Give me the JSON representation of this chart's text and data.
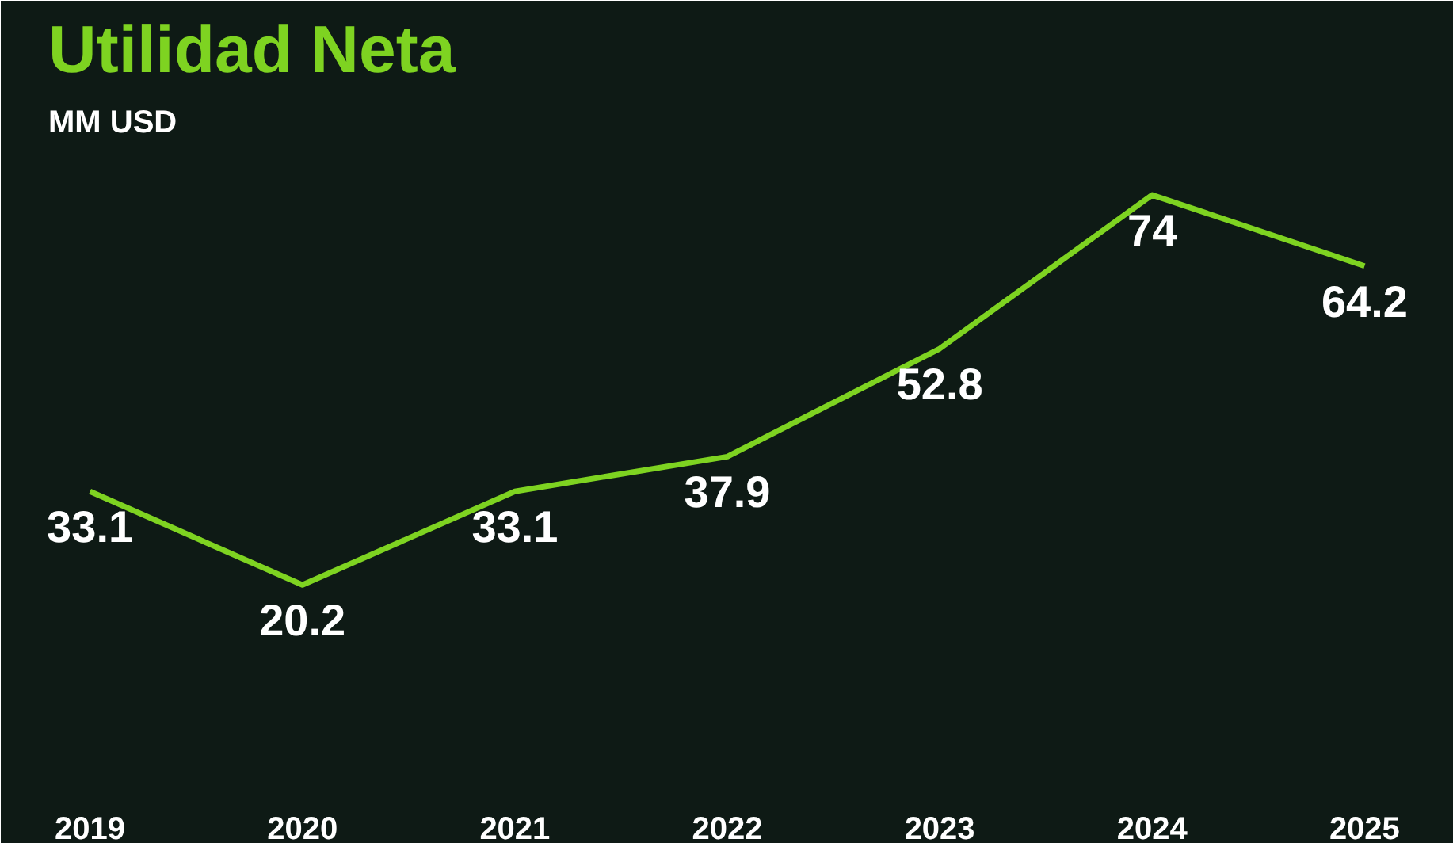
{
  "chart_data": {
    "type": "line",
    "title": "Utilidad Neta",
    "subtitle": "MM USD",
    "categories": [
      "2019",
      "2020",
      "2021",
      "2022",
      "2023",
      "2024",
      "2025"
    ],
    "series": [
      {
        "color": "#7ed321",
        "values": [
          33.1,
          20.2,
          33.1,
          37.9,
          52.8,
          74,
          64.2
        ]
      }
    ],
    "data_labels": true,
    "grid": false,
    "marker": "none",
    "line_style": "solid"
  }
}
